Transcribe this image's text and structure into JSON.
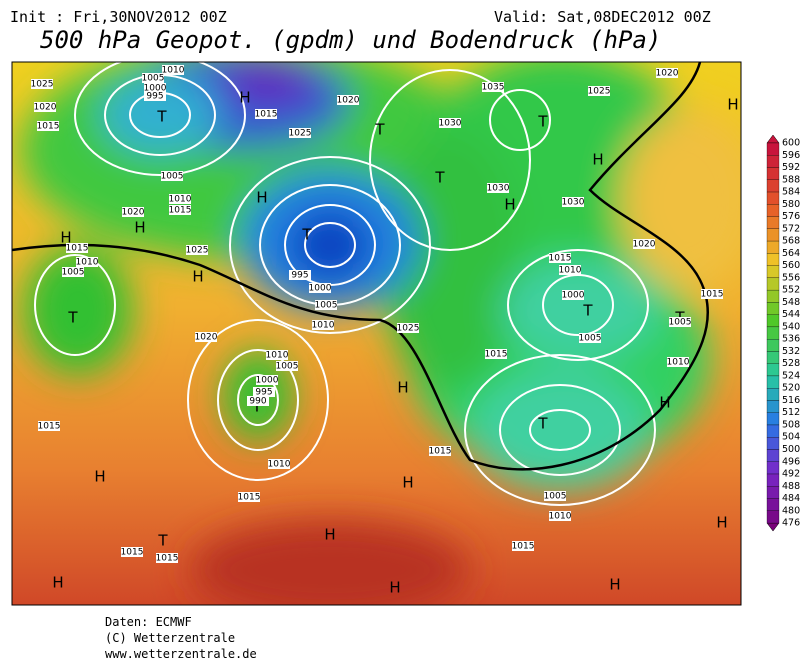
{
  "header": {
    "init": "Init : Fri,30NOV2012  00Z",
    "valid": "Valid: Sat,08DEC2012  00Z"
  },
  "title": "500 hPa Geopot. (gpdm) und Bodendruck (hPa)",
  "centers": [
    "H",
    "H",
    "H",
    "H",
    "H",
    "H",
    "H",
    "H",
    "H",
    "H",
    "H",
    "H",
    "H",
    "H",
    "H",
    "H",
    "H",
    "T",
    "T",
    "T",
    "T",
    "T",
    "T",
    "T",
    "T",
    "T",
    "T",
    "T"
  ],
  "pressure_labels": [
    "1025",
    "1020",
    "1015",
    "1010",
    "1005",
    "1000",
    "995",
    "1015",
    "1020",
    "1025",
    "1030",
    "1035",
    "1025",
    "1020",
    "1030",
    "1030",
    "1020",
    "1015",
    "1015",
    "1010",
    "1000",
    "1005",
    "1010",
    "1005",
    "1015",
    "1025",
    "1010",
    "1000",
    "1005",
    "995",
    "1005",
    "1010",
    "1015",
    "1020",
    "1015",
    "1010",
    "1005",
    "1025",
    "1020",
    "1010",
    "1005",
    "1000",
    "995",
    "990",
    "1015",
    "1010",
    "1015",
    "1015",
    "1005",
    "1010",
    "1015",
    "1015",
    "1015"
  ],
  "colorbar": {
    "ticks": [
      600,
      596,
      592,
      588,
      584,
      580,
      576,
      572,
      568,
      564,
      560,
      556,
      552,
      548,
      544,
      540,
      536,
      532,
      528,
      524,
      520,
      516,
      512,
      508,
      504,
      500,
      496,
      492,
      488,
      484,
      480,
      476
    ]
  },
  "footer": [
    "Daten: ECMWF",
    "(C) Wetterzentrale",
    "www.wetterzentrale.de"
  ]
}
